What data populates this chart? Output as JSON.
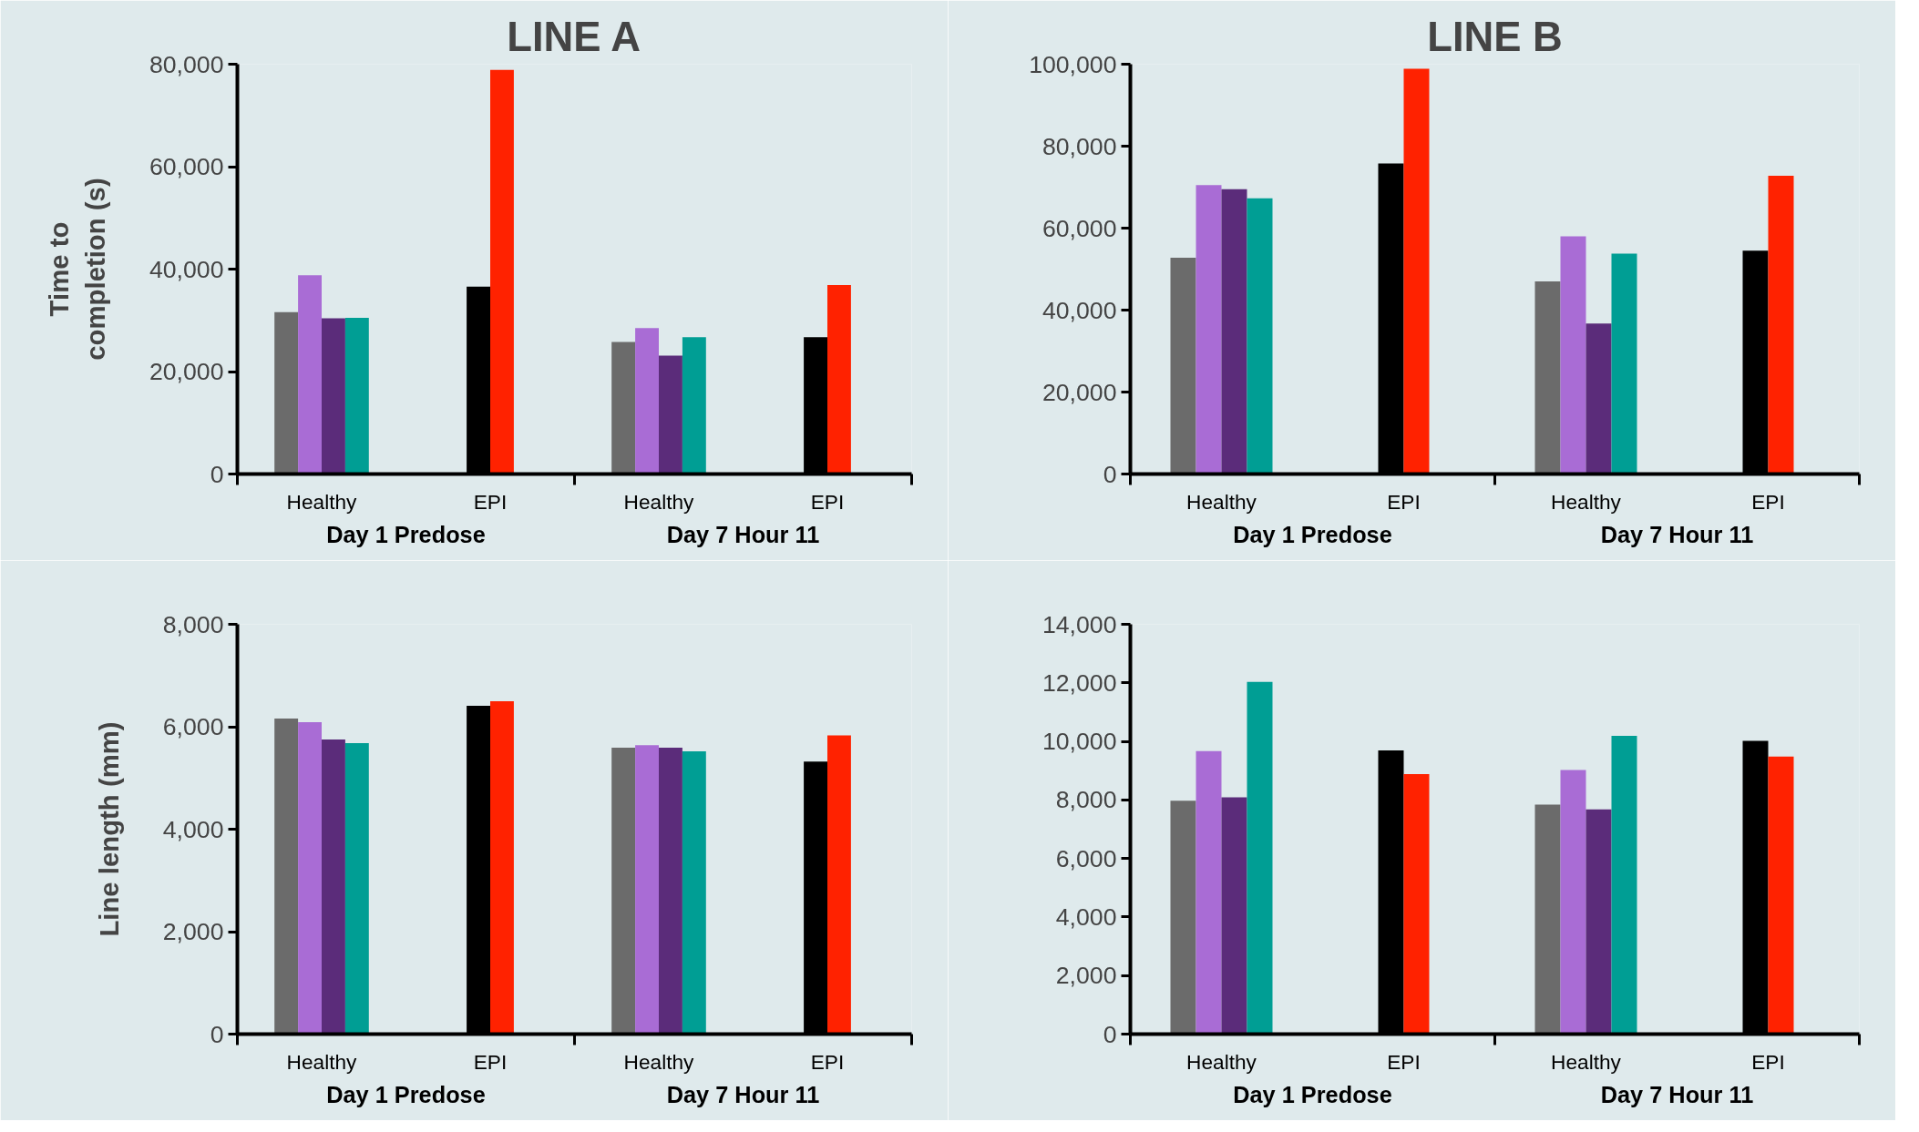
{
  "chart_data": [
    {
      "type": "bar",
      "title": "LINE A",
      "ylabel": "Time to\ncompletion (s)",
      "categories": [
        "Healthy",
        "EPI",
        "Healthy",
        "EPI"
      ],
      "ylim": [
        0,
        80000
      ],
      "yticks": [
        0,
        {
          "value": 20000,
          "label": "20,000"
        },
        {
          "value": 40000,
          "label": "40,000"
        },
        {
          "value": 60000,
          "label": "60,000"
        },
        {
          "value": 80000,
          "label": "80,000"
        }
      ],
      "grid": false,
      "annotations": [
        "Day 1 Predose",
        "Day 7 Hour 11"
      ],
      "series": [
        {
          "color": "#6b6b6b",
          "values": [
            31600,
            null,
            25800,
            null
          ]
        },
        {
          "color": "#a96cd5",
          "values": [
            38800,
            null,
            28500,
            null
          ]
        },
        {
          "color": "#5b2c7a",
          "values": [
            30400,
            null,
            23100,
            null
          ]
        },
        {
          "color": "#009e94",
          "values": [
            30500,
            null,
            26700,
            null
          ]
        },
        {
          "color": "#000000",
          "values": [
            null,
            36600,
            null,
            26700
          ]
        },
        {
          "color": "#ff2200",
          "values": [
            null,
            78900,
            null,
            36900
          ]
        }
      ]
    },
    {
      "type": "bar",
      "title": "LINE B",
      "categories": [
        "Healthy",
        "EPI",
        "Healthy",
        "EPI"
      ],
      "ylim": [
        0,
        100000
      ],
      "yticks": [
        0,
        {
          "value": 20000,
          "label": "20,000"
        },
        {
          "value": 40000,
          "label": "40,000"
        },
        {
          "value": 60000,
          "label": "60,000"
        },
        {
          "value": 80000,
          "label": "80,000"
        },
        {
          "value": 100000,
          "label": "100,000"
        }
      ],
      "grid": false,
      "annotations": [
        "Day 1 Predose",
        "Day 7 Hour 11"
      ],
      "series": [
        {
          "color": "#6b6b6b",
          "values": [
            52800,
            null,
            47000,
            null
          ]
        },
        {
          "color": "#a96cd5",
          "values": [
            70500,
            null,
            58000,
            null
          ]
        },
        {
          "color": "#5b2c7a",
          "values": [
            69500,
            null,
            36700,
            null
          ]
        },
        {
          "color": "#009e94",
          "values": [
            67300,
            null,
            53800,
            null
          ]
        },
        {
          "color": "#000000",
          "values": [
            null,
            75800,
            null,
            54500
          ]
        },
        {
          "color": "#ff2200",
          "values": [
            null,
            98900,
            null,
            72800
          ]
        }
      ]
    },
    {
      "type": "bar",
      "ylabel": "Line length (mm)",
      "categories": [
        "Healthy",
        "EPI",
        "Healthy",
        "EPI"
      ],
      "ylim": [
        0,
        8000
      ],
      "yticks": [
        0,
        {
          "value": 2000,
          "label": "2,000"
        },
        {
          "value": 4000,
          "label": "4,000"
        },
        {
          "value": 6000,
          "label": "6,000"
        },
        {
          "value": 8000,
          "label": "8,000"
        }
      ],
      "grid": false,
      "annotations": [
        "Day 1 Predose",
        "Day 7 Hour 11"
      ],
      "series": [
        {
          "color": "#6b6b6b",
          "values": [
            6160,
            null,
            5590,
            null
          ]
        },
        {
          "color": "#a96cd5",
          "values": [
            6090,
            null,
            5640,
            null
          ]
        },
        {
          "color": "#5b2c7a",
          "values": [
            5750,
            null,
            5590,
            null
          ]
        },
        {
          "color": "#009e94",
          "values": [
            5680,
            null,
            5520,
            null
          ]
        },
        {
          "color": "#000000",
          "values": [
            null,
            6410,
            null,
            5320
          ]
        },
        {
          "color": "#ff2200",
          "values": [
            null,
            6500,
            null,
            5830
          ]
        }
      ]
    },
    {
      "type": "bar",
      "categories": [
        "Healthy",
        "EPI",
        "Healthy",
        "EPI"
      ],
      "ylim": [
        0,
        14000
      ],
      "yticks": [
        0,
        {
          "value": 2000,
          "label": "2,000"
        },
        {
          "value": 4000,
          "label": "4,000"
        },
        {
          "value": 6000,
          "label": "6,000"
        },
        {
          "value": 8000,
          "label": "8,000"
        },
        {
          "value": 10000,
          "label": "10,000"
        },
        {
          "value": 12000,
          "label": "12,000"
        },
        {
          "value": 14000,
          "label": "14,000"
        }
      ],
      "grid": false,
      "annotations": [
        "Day 1 Predose",
        "Day 7 Hour 11"
      ],
      "series": [
        {
          "color": "#6b6b6b",
          "values": [
            7970,
            null,
            7840,
            null
          ]
        },
        {
          "color": "#a96cd5",
          "values": [
            9670,
            null,
            9020,
            null
          ]
        },
        {
          "color": "#5b2c7a",
          "values": [
            8090,
            null,
            7680,
            null
          ]
        },
        {
          "color": "#009e94",
          "values": [
            12030,
            null,
            10190,
            null
          ]
        },
        {
          "color": "#000000",
          "values": [
            null,
            9690,
            null,
            10020
          ]
        },
        {
          "color": "#ff2200",
          "values": [
            null,
            8880,
            null,
            9480
          ]
        }
      ]
    }
  ]
}
